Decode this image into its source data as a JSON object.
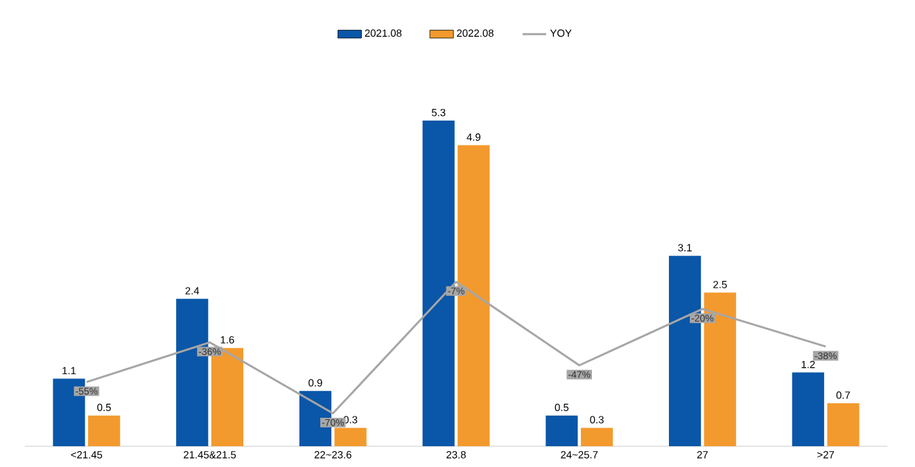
{
  "chart_data": {
    "type": "bar",
    "categories": [
      "<21.45",
      "21.45&21.5",
      "22~23.6",
      "23.8",
      "24~25.7",
      "27",
      ">27"
    ],
    "series": [
      {
        "name": "2021.08",
        "color": "#0a56a8",
        "values": [
          1.1,
          2.4,
          0.9,
          5.3,
          0.5,
          3.1,
          1.2
        ]
      },
      {
        "name": "2022.08",
        "color": "#f39a2e",
        "values": [
          0.5,
          1.6,
          0.3,
          4.9,
          0.3,
          2.5,
          0.7
        ]
      },
      {
        "name": "YOY",
        "type": "line",
        "axis": "y2",
        "color": "#a6a6a6",
        "values": [
          -55,
          -36,
          -70,
          -7,
          -47,
          -20,
          -38
        ],
        "value_labels": [
          "-55%",
          "-36%",
          "-70%",
          "-7%",
          "-47%",
          "-20%",
          "-38%"
        ]
      }
    ],
    "data_labels": true,
    "legend": "top",
    "grid": false,
    "tick_labels": "x"
  }
}
